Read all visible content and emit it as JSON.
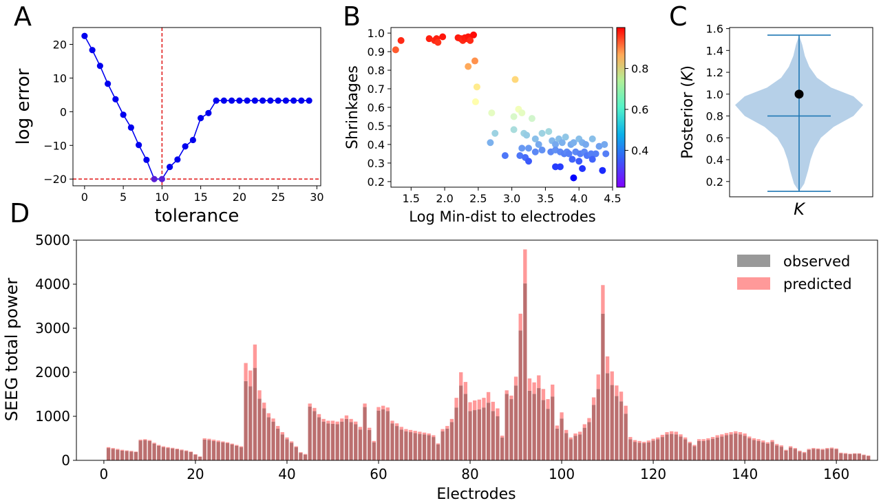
{
  "panel_letters": {
    "a": "A",
    "b": "B",
    "c": "C",
    "d": "D"
  },
  "colors": {
    "line": "#0000ee",
    "ref_line": "#dd0000",
    "violin_fill": "#a9c8e4",
    "violin_line": "#1f77b4",
    "observed": "#999999",
    "predicted": "#ff9999",
    "overlap": "#bb6f6f"
  },
  "chart_data": [
    {
      "id": "A",
      "type": "line",
      "xlabel": "tolerance",
      "ylabel": "log error",
      "xlim": [
        -1.5,
        30.5
      ],
      "ylim": [
        -22,
        25
      ],
      "xticks": [
        0,
        5,
        10,
        15,
        20,
        25,
        30
      ],
      "yticks": [
        -20,
        -10,
        0,
        10,
        20
      ],
      "ytick_labels": [
        "−20",
        "−10",
        "0",
        "10",
        "20"
      ],
      "reference_lines": {
        "x": 10,
        "y": -20
      },
      "x": [
        0,
        1,
        2,
        3,
        4,
        5,
        6,
        7,
        8,
        9,
        10,
        11,
        12,
        13,
        14,
        15,
        16,
        17,
        18,
        19,
        20,
        21,
        22,
        23,
        24,
        25,
        26,
        27,
        28,
        29
      ],
      "y": [
        22.5,
        18.3,
        13.6,
        8.3,
        3.7,
        -0.9,
        -4.7,
        -9.9,
        -14.3,
        -20.0,
        -20.0,
        -16.4,
        -14.2,
        -10.3,
        -8.4,
        -1.9,
        -0.4,
        3.3,
        3.3,
        3.3,
        3.3,
        3.3,
        3.3,
        3.3,
        3.3,
        3.3,
        3.3,
        3.3,
        3.3,
        3.3
      ],
      "highlighted_points": [
        9,
        10
      ]
    },
    {
      "id": "B",
      "type": "scatter",
      "xlabel": "Log Min-dist to electrodes",
      "ylabel": "Shrinkages",
      "xlim": [
        1.2,
        4.5
      ],
      "ylim": [
        0.17,
        1.03
      ],
      "xticks": [
        1.5,
        2.0,
        2.5,
        3.0,
        3.5,
        4.0,
        4.5
      ],
      "xtick_labels": [
        "1.5",
        "2.0",
        "2.5",
        "3.0",
        "3.5",
        "4.0",
        "4.5"
      ],
      "yticks": [
        0.2,
        0.3,
        0.4,
        0.5,
        0.6,
        0.7,
        0.8,
        0.9,
        1.0
      ],
      "ytick_labels": [
        "0.2",
        "0.3",
        "0.4",
        "0.5",
        "0.6",
        "0.7",
        "0.8",
        "0.9",
        "1.0"
      ],
      "colorbar": {
        "colormap": "rainbow",
        "range": [
          0.22,
          1.0
        ],
        "ticks": [
          0.4,
          0.6,
          0.8
        ],
        "tick_labels": [
          "0.4",
          "0.6",
          "0.8"
        ]
      },
      "points": [
        [
          1.27,
          0.91
        ],
        [
          1.35,
          0.96
        ],
        [
          1.77,
          0.97
        ],
        [
          1.85,
          0.96
        ],
        [
          1.88,
          0.97
        ],
        [
          1.9,
          0.95
        ],
        [
          1.97,
          0.98
        ],
        [
          2.2,
          0.975
        ],
        [
          2.24,
          0.97
        ],
        [
          2.27,
          0.96
        ],
        [
          2.3,
          0.975
        ],
        [
          2.33,
          0.97
        ],
        [
          2.35,
          0.98
        ],
        [
          2.38,
          0.96
        ],
        [
          2.43,
          0.99
        ],
        [
          2.35,
          0.82
        ],
        [
          2.45,
          0.85
        ],
        [
          2.48,
          0.71
        ],
        [
          2.46,
          0.63
        ],
        [
          3.05,
          0.75
        ],
        [
          2.7,
          0.57
        ],
        [
          2.75,
          0.46
        ],
        [
          2.68,
          0.41
        ],
        [
          3.03,
          0.55
        ],
        [
          3.1,
          0.59
        ],
        [
          3.15,
          0.57
        ],
        [
          3.3,
          0.54
        ],
        [
          3.03,
          0.48
        ],
        [
          3.18,
          0.46
        ],
        [
          3.22,
          0.45
        ],
        [
          3.35,
          0.43
        ],
        [
          3.45,
          0.46
        ],
        [
          3.55,
          0.47
        ],
        [
          3.4,
          0.4
        ],
        [
          3.6,
          0.42
        ],
        [
          3.65,
          0.4
        ],
        [
          3.7,
          0.43
        ],
        [
          3.75,
          0.41
        ],
        [
          3.8,
          0.44
        ],
        [
          3.88,
          0.4
        ],
        [
          3.92,
          0.41
        ],
        [
          4.0,
          0.43
        ],
        [
          4.05,
          0.41
        ],
        [
          4.1,
          0.4
        ],
        [
          4.2,
          0.43
        ],
        [
          4.3,
          0.39
        ],
        [
          4.38,
          0.4
        ],
        [
          2.9,
          0.34
        ],
        [
          3.15,
          0.38
        ],
        [
          3.25,
          0.38
        ],
        [
          3.35,
          0.36
        ],
        [
          3.45,
          0.37
        ],
        [
          3.58,
          0.36
        ],
        [
          3.65,
          0.37
        ],
        [
          3.72,
          0.36
        ],
        [
          3.78,
          0.35
        ],
        [
          3.82,
          0.36
        ],
        [
          3.85,
          0.35
        ],
        [
          3.95,
          0.36
        ],
        [
          4.02,
          0.35
        ],
        [
          4.08,
          0.36
        ],
        [
          4.12,
          0.34
        ],
        [
          4.18,
          0.35
        ],
        [
          4.25,
          0.35
        ],
        [
          4.4,
          0.35
        ],
        [
          3.12,
          0.34
        ],
        [
          3.2,
          0.33
        ],
        [
          3.25,
          0.31
        ],
        [
          3.9,
          0.32
        ],
        [
          4.0,
          0.31
        ],
        [
          4.2,
          0.32
        ],
        [
          3.65,
          0.28
        ],
        [
          3.72,
          0.28
        ],
        [
          4.05,
          0.27
        ],
        [
          4.35,
          0.26
        ],
        [
          3.92,
          0.22
        ]
      ]
    },
    {
      "id": "C",
      "type": "violin",
      "xlabel": "K",
      "ylabel": "Posterior (K)",
      "ylabel_parts": [
        "Posterior (",
        "K",
        ")"
      ],
      "ylim": [
        0.06,
        1.61
      ],
      "yticks": [
        0.2,
        0.4,
        0.6,
        0.8,
        1.0,
        1.2,
        1.4,
        1.6
      ],
      "ytick_labels": [
        "0.2",
        "0.4",
        "0.6",
        "0.8",
        "1.0",
        "1.2",
        "1.4",
        "1.6"
      ],
      "min": 0.11,
      "max": 1.54,
      "median": 0.8,
      "point": 1.0,
      "density_profile": [
        [
          0.11,
          0.0
        ],
        [
          0.18,
          0.08
        ],
        [
          0.3,
          0.14
        ],
        [
          0.4,
          0.18
        ],
        [
          0.5,
          0.24
        ],
        [
          0.6,
          0.34
        ],
        [
          0.7,
          0.54
        ],
        [
          0.8,
          0.85
        ],
        [
          0.9,
          1.0
        ],
        [
          0.98,
          0.85
        ],
        [
          1.06,
          0.5
        ],
        [
          1.15,
          0.28
        ],
        [
          1.25,
          0.16
        ],
        [
          1.35,
          0.09
        ],
        [
          1.45,
          0.05
        ],
        [
          1.54,
          0.0
        ]
      ]
    },
    {
      "id": "D",
      "type": "bar",
      "xlabel": "Electrodes",
      "ylabel": "SEEG total power",
      "xlim": [
        -6,
        169
      ],
      "ylim": [
        0,
        5000
      ],
      "xticks": [
        0,
        20,
        40,
        60,
        80,
        100,
        120,
        140,
        160
      ],
      "yticks": [
        0,
        1000,
        2000,
        3000,
        4000,
        5000
      ],
      "legend": {
        "position": "top-right",
        "entries": [
          "observed",
          "predicted"
        ]
      },
      "series": [
        {
          "name": "observed",
          "values": [
            280,
            260,
            240,
            220,
            210,
            200,
            190,
            450,
            460,
            440,
            380,
            330,
            300,
            280,
            270,
            250,
            230,
            210,
            190,
            130,
            80,
            470,
            460,
            440,
            420,
            410,
            390,
            360,
            330,
            300,
            1800,
            1680,
            2100,
            1400,
            1180,
            980,
            880,
            720,
            590,
            480,
            400,
            300,
            170,
            130,
            1220,
            1120,
            980,
            880,
            840,
            830,
            820,
            880,
            940,
            870,
            820,
            700,
            1210,
            690,
            410,
            1130,
            1160,
            1120,
            840,
            780,
            700,
            660,
            640,
            620,
            600,
            590,
            570,
            530,
            360,
            660,
            720,
            870,
            1200,
            1700,
            1510,
            1120,
            1140,
            1160,
            1200,
            1310,
            1120,
            1000,
            520,
            1510,
            1390,
            1700,
            2950,
            4020,
            1580,
            1510,
            1640,
            1370,
            1170,
            1450,
            720,
            950,
            620,
            480,
            560,
            590,
            740,
            870,
            1260,
            1620,
            3330,
            1980,
            1710,
            1460,
            1340,
            1060,
            480,
            420,
            400,
            390,
            410,
            450,
            480,
            530,
            590,
            600,
            590,
            540,
            480,
            390,
            320,
            440,
            440,
            460,
            490,
            520,
            540,
            570,
            590,
            610,
            590,
            560,
            500,
            460,
            440,
            410,
            380,
            420,
            340,
            310,
            220,
            290,
            260,
            200,
            170,
            240,
            260,
            250,
            240,
            260,
            270,
            250,
            160,
            150,
            140,
            150,
            150,
            120,
            100
          ]
        },
        {
          "name": "predicted",
          "values": [
            300,
            280,
            260,
            240,
            225,
            215,
            200,
            470,
            480,
            460,
            400,
            350,
            320,
            300,
            285,
            265,
            245,
            225,
            200,
            140,
            90,
            500,
            490,
            470,
            450,
            430,
            410,
            380,
            350,
            320,
            2210,
            2040,
            2630,
            1590,
            1310,
            1070,
            950,
            780,
            640,
            520,
            430,
            320,
            185,
            145,
            1290,
            1190,
            1050,
            940,
            900,
            900,
            880,
            950,
            1020,
            940,
            880,
            760,
            1290,
            740,
            440,
            1210,
            1240,
            1200,
            900,
            840,
            760,
            710,
            690,
            670,
            650,
            630,
            610,
            570,
            385,
            710,
            780,
            940,
            1420,
            2000,
            1780,
            1320,
            1360,
            1380,
            1420,
            1550,
            1330,
            1180,
            560,
            1590,
            1470,
            1900,
            3330,
            4790,
            1860,
            1770,
            1930,
            1620,
            1390,
            1720,
            790,
            1090,
            690,
            520,
            610,
            650,
            820,
            960,
            1430,
            1950,
            3980,
            2360,
            2020,
            1700,
            1560,
            1240,
            530,
            460,
            440,
            420,
            450,
            490,
            520,
            580,
            640,
            660,
            650,
            590,
            520,
            420,
            350,
            480,
            480,
            500,
            530,
            570,
            590,
            620,
            640,
            660,
            640,
            610,
            540,
            500,
            480,
            450,
            410,
            460,
            370,
            340,
            240,
            320,
            280,
            220,
            190,
            260,
            280,
            270,
            260,
            280,
            290,
            270,
            175,
            165,
            150,
            160,
            160,
            130,
            110
          ]
        }
      ]
    }
  ]
}
